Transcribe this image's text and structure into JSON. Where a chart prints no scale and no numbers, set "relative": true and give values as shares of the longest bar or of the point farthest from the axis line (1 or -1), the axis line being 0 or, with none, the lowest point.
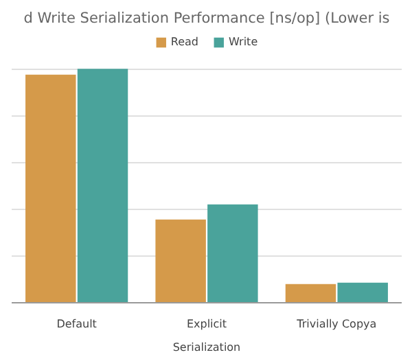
{
  "chart_data": {
    "type": "bar",
    "title": "d Write Serialization Performance [ns/op] (Lower is",
    "xlabel": "Serialization",
    "categories": [
      "Default",
      "Explicit",
      "Trivially Copya"
    ],
    "relative": true,
    "grid": "y",
    "legend": "top",
    "series": [
      {
        "name": "Read",
        "color": "#d59a4a",
        "values": [
          0.975,
          0.356,
          0.08
        ]
      },
      {
        "name": "Write",
        "color": "#4aa39b",
        "values": [
          1,
          0.42,
          0.086
        ]
      }
    ]
  }
}
